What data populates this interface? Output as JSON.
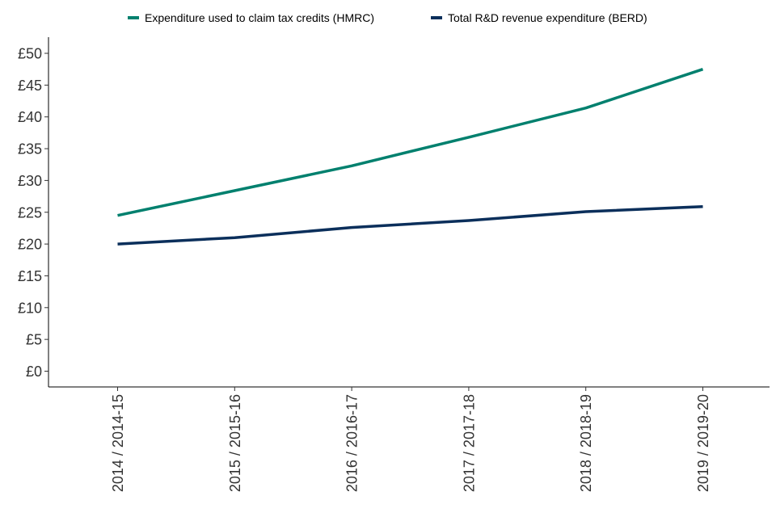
{
  "chart_data": {
    "type": "line",
    "categories": [
      "2014 / 2014-15",
      "2015 / 2015-16",
      "2016 / 2016-17",
      "2017 / 2017-18",
      "2018 / 2018-19",
      "2019 / 2019-20"
    ],
    "series": [
      {
        "name": "Expenditure used to claim tax credits (HMRC)",
        "color": "#00806e",
        "values": [
          24.5,
          28.4,
          32.3,
          36.8,
          41.4,
          47.5
        ]
      },
      {
        "name": "Total R&D revenue expenditure (BERD)",
        "color": "#0b2f5b",
        "values": [
          20.0,
          21.0,
          22.6,
          23.7,
          25.1,
          25.9
        ]
      }
    ],
    "title": "",
    "xlabel": "",
    "ylabel": "",
    "ylim": [
      0,
      50
    ],
    "yticks": [
      "£0",
      "£5",
      "£10",
      "£15",
      "£20",
      "£25",
      "£30",
      "£35",
      "£40",
      "£45",
      "£50"
    ],
    "grid": false,
    "legend_position": "top"
  }
}
